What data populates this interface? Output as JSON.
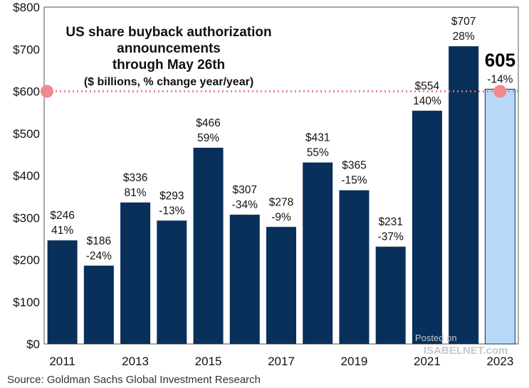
{
  "chart_data": {
    "type": "bar",
    "title_lines": [
      "US share buyback authorization",
      "announcements",
      "through May 26th"
    ],
    "subtitle": "($ billions, % change year/year)",
    "categories": [
      "2011",
      "2012",
      "2013",
      "2014",
      "2015",
      "2016",
      "2017",
      "2018",
      "2019",
      "2020",
      "2021",
      "2022",
      "2023"
    ],
    "values": [
      246,
      186,
      336,
      293,
      466,
      307,
      278,
      431,
      365,
      231,
      554,
      707,
      605
    ],
    "value_labels": [
      "$246",
      "$186",
      "$336",
      "$293",
      "$466",
      "$307",
      "$278",
      "$431",
      "$365",
      "$231",
      "$554",
      "$707",
      "605"
    ],
    "change_labels": [
      "41%",
      "-24%",
      "81%",
      "-13%",
      "59%",
      "-34%",
      "-9%",
      "55%",
      "-15%",
      "-37%",
      "140%",
      "28%",
      "-14%"
    ],
    "xtick_labels": [
      "2011",
      "",
      "2013",
      "",
      "2015",
      "",
      "2017",
      "",
      "2019",
      "",
      "2021",
      "",
      "2023"
    ],
    "yticks": [
      0,
      100,
      200,
      300,
      400,
      500,
      600,
      700,
      800
    ],
    "ytick_labels": [
      "$0",
      "$100",
      "$200",
      "$300",
      "$400",
      "$500",
      "$600",
      "$700",
      "$800"
    ],
    "ylim": [
      0,
      800
    ],
    "reference_line": {
      "value": 600
    },
    "highlight_index": 12,
    "colors": {
      "bar": "#08305b",
      "highlight": "#b7d9f7",
      "reference": "#ef6b7c",
      "marker": "#ef8a8f"
    }
  },
  "watermark": {
    "line1": "Posted on",
    "line2": "ISABELNET.com"
  },
  "source": "Source: Goldman Sachs Global Investment Research"
}
